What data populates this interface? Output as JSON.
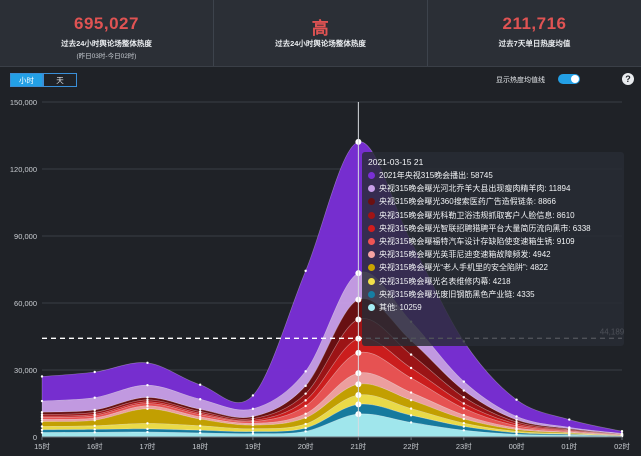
{
  "stats": [
    {
      "value": "695,027",
      "label": "过去24小时舆论场整体热度",
      "sub": "(昨日03时-今日02时)"
    },
    {
      "value": "高",
      "label": "过去24小时舆论场整体热度",
      "sub": ""
    },
    {
      "value": "211,716",
      "label": "过去7天单日热度均值",
      "sub": ""
    }
  ],
  "tabs": {
    "hour": "小时",
    "day": "天"
  },
  "avg_toggle_label": "显示热度均值线",
  "help_label": "?",
  "average_line_label": "44,189",
  "colors": {
    "accent": "#23a0e6",
    "stat_value": "#e05353",
    "background": "#1f2227"
  },
  "tooltip": {
    "title": "2021-03-15 21",
    "items": [
      {
        "color": "#7a2fd6",
        "text": "2021年央视315晚会播出: 58745"
      },
      {
        "color": "#c89ee8",
        "text": "央视315晚会曝光河北乔羊大县出现瘦肉精羊肉: 11894"
      },
      {
        "color": "#6b1012",
        "text": "央视315晚会曝光360搜索医药广告造假链条: 8866"
      },
      {
        "color": "#a11416",
        "text": "央视315晚会曝光科勒卫浴违规抓取客户人脸信息: 8610"
      },
      {
        "color": "#d21d1d",
        "text": "央视315晚会曝光智联招聘猎聘平台大量简历流向黑市: 6338"
      },
      {
        "color": "#ee5454",
        "text": "央视315晚会曝福特汽车设计存缺陷使变速箱生锈: 9109"
      },
      {
        "color": "#f5a3a3",
        "text": "央视315晚会曝光英菲尼迪变速箱故障频发: 4942"
      },
      {
        "color": "#c9a400",
        "text": "央视315晚会曝光“老人手机里的安全陷阱”: 4822"
      },
      {
        "color": "#f2e24a",
        "text": "央视315晚会曝光名表维修内幕: 4218"
      },
      {
        "color": "#167ea3",
        "text": "央视315晚会曝光废旧钢筋黑色产业链: 4335"
      },
      {
        "color": "#a6eef5",
        "text": "其他: 10259"
      }
    ]
  },
  "chart_data": {
    "type": "area",
    "stacked": true,
    "categories": [
      "15时",
      "16时",
      "17时",
      "18时",
      "19时",
      "20时",
      "21时",
      "22时",
      "23时",
      "00时",
      "01时",
      "02时"
    ],
    "ylim": [
      0,
      150000
    ],
    "yticks": [
      0,
      30000,
      60000,
      90000,
      120000,
      150000
    ],
    "ytick_labels": [
      "0",
      "30,000",
      "60,000",
      "90,000",
      "120,000",
      "150,000"
    ],
    "average": 44189,
    "highlight_category": "21时",
    "series": [
      {
        "name": "其他",
        "color": "#a6eef5",
        "values": [
          2000,
          2100,
          2200,
          1800,
          1500,
          2500,
          10259,
          6500,
          3000,
          1200,
          800,
          300
        ]
      },
      {
        "name": "央视315晚会曝光废旧钢筋黑色产业链",
        "color": "#167ea3",
        "values": [
          1200,
          1300,
          1400,
          1200,
          900,
          1500,
          4335,
          3200,
          1700,
          700,
          400,
          150
        ]
      },
      {
        "name": "央视315晚会曝光名表维修内幕",
        "color": "#f2e24a",
        "values": [
          1500,
          1600,
          2500,
          2000,
          1300,
          1800,
          4218,
          3000,
          1500,
          600,
          300,
          120
        ]
      },
      {
        "name": "央视315晚会曝光“老人手机里的安全陷阱”",
        "color": "#c9a400",
        "values": [
          2200,
          2500,
          6500,
          3000,
          1600,
          2800,
          4822,
          3800,
          1900,
          800,
          400,
          150
        ]
      },
      {
        "name": "央视315晚会曝光英菲尼迪变速箱故障频发",
        "color": "#f5a3a3",
        "values": [
          1000,
          1000,
          1300,
          1000,
          800,
          1800,
          4942,
          3400,
          1700,
          700,
          300,
          100
        ]
      },
      {
        "name": "央视315晚会曝福特汽车设计存缺陷使变速箱生锈",
        "color": "#ee5454",
        "values": [
          900,
          1000,
          1100,
          1000,
          800,
          3500,
          9109,
          6500,
          3000,
          1000,
          400,
          150
        ]
      },
      {
        "name": "央视315晚会曝光智联招聘猎聘平台大量简历流向黑市",
        "color": "#d21d1d",
        "values": [
          500,
          600,
          700,
          600,
          500,
          2500,
          6338,
          4500,
          2200,
          800,
          300,
          100
        ]
      },
      {
        "name": "央视315晚会曝光科勒卫浴违规抓取客户人脸信息",
        "color": "#a11416",
        "values": [
          800,
          900,
          900,
          800,
          800,
          3000,
          8610,
          6000,
          2800,
          900,
          400,
          150
        ]
      },
      {
        "name": "央视315晚会曝光360搜索医药广告造假链条",
        "color": "#6b1012",
        "values": [
          1000,
          1100,
          1100,
          1000,
          900,
          3500,
          8866,
          6200,
          3000,
          1000,
          400,
          150
        ]
      },
      {
        "name": "央视315晚会曝光河北乔羊大县出现瘦肉精羊肉",
        "color": "#c89ee8",
        "values": [
          5000,
          5500,
          5500,
          4500,
          3500,
          6500,
          11894,
          8500,
          4000,
          1500,
          600,
          200
        ]
      },
      {
        "name": "2021年央视315晚会播出",
        "color": "#7a2fd6",
        "values": [
          11000,
          11500,
          10000,
          6500,
          6000,
          45000,
          58745,
          36000,
          18000,
          7500,
          3500,
          1000
        ]
      }
    ]
  }
}
